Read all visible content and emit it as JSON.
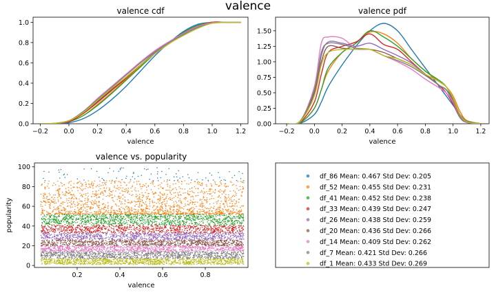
{
  "figure": {
    "suptitle": "valence"
  },
  "chart_data": [
    {
      "id": "cdf",
      "type": "line",
      "title": "valence cdf",
      "xlabel": "valence",
      "ylabel": "",
      "xlim": [
        -0.25,
        1.25
      ],
      "ylim": [
        0,
        1.05
      ],
      "xticks": [
        -0.2,
        0.0,
        0.2,
        0.4,
        0.6,
        0.8,
        1.0,
        1.2
      ],
      "xtick_labels": [
        "−0.2",
        "0.0",
        "0.2",
        "0.4",
        "0.6",
        "0.8",
        "1.0",
        "1.2"
      ],
      "yticks": [
        0.0,
        0.2,
        0.4,
        0.6,
        0.8,
        1.0
      ],
      "ytick_labels": [
        "0.0",
        "0.2",
        "0.4",
        "0.6",
        "0.8",
        "1.0"
      ],
      "x": [
        -0.2,
        -0.1,
        0.0,
        0.1,
        0.2,
        0.3,
        0.4,
        0.5,
        0.6,
        0.7,
        0.8,
        0.9,
        1.0,
        1.1,
        1.2
      ],
      "series": [
        {
          "color": "#1f77b4",
          "values": [
            0,
            0.002,
            0.01,
            0.05,
            0.13,
            0.24,
            0.37,
            0.52,
            0.67,
            0.8,
            0.91,
            0.98,
            1.0,
            1.0,
            1.0
          ]
        },
        {
          "color": "#ff7f0e",
          "values": [
            0,
            0.003,
            0.02,
            0.08,
            0.19,
            0.31,
            0.44,
            0.57,
            0.7,
            0.8,
            0.89,
            0.96,
            1.0,
            1.0,
            1.0
          ]
        },
        {
          "color": "#2ca02c",
          "values": [
            0,
            0.003,
            0.02,
            0.08,
            0.18,
            0.3,
            0.43,
            0.56,
            0.69,
            0.8,
            0.9,
            0.97,
            1.0,
            1.0,
            1.0
          ]
        },
        {
          "color": "#d62728",
          "values": [
            0,
            0.004,
            0.02,
            0.1,
            0.21,
            0.33,
            0.45,
            0.58,
            0.7,
            0.8,
            0.89,
            0.96,
            1.0,
            1.0,
            1.0
          ]
        },
        {
          "color": "#9467bd",
          "values": [
            0,
            0.004,
            0.03,
            0.11,
            0.22,
            0.34,
            0.46,
            0.58,
            0.7,
            0.8,
            0.89,
            0.96,
            0.995,
            1.0,
            1.0
          ]
        },
        {
          "color": "#8c564b",
          "values": [
            0,
            0.004,
            0.03,
            0.11,
            0.22,
            0.34,
            0.46,
            0.58,
            0.69,
            0.79,
            0.88,
            0.95,
            0.995,
            1.0,
            1.0
          ]
        },
        {
          "color": "#e377c2",
          "values": [
            0,
            0.004,
            0.03,
            0.12,
            0.25,
            0.37,
            0.49,
            0.61,
            0.72,
            0.81,
            0.89,
            0.96,
            0.995,
            1.0,
            1.0
          ]
        },
        {
          "color": "#7f7f7f",
          "values": [
            0,
            0.004,
            0.03,
            0.12,
            0.24,
            0.36,
            0.48,
            0.6,
            0.71,
            0.8,
            0.88,
            0.95,
            0.99,
            1.0,
            1.0
          ]
        },
        {
          "color": "#bcbd22",
          "values": [
            0,
            0.004,
            0.03,
            0.11,
            0.23,
            0.35,
            0.46,
            0.58,
            0.69,
            0.79,
            0.87,
            0.94,
            0.99,
            1.0,
            1.0
          ]
        }
      ]
    },
    {
      "id": "pdf",
      "type": "line",
      "title": "valence pdf",
      "xlabel": "valence",
      "ylabel": "",
      "xlim": [
        -0.28,
        1.26
      ],
      "ylim": [
        0,
        1.72
      ],
      "xticks": [
        -0.2,
        0.0,
        0.2,
        0.4,
        0.6,
        0.8,
        1.0,
        1.2
      ],
      "xtick_labels": [
        "−0.2",
        "0.0",
        "0.2",
        "0.4",
        "0.6",
        "0.8",
        "1.0",
        "1.2"
      ],
      "yticks": [
        0.0,
        0.25,
        0.5,
        0.75,
        1.0,
        1.25,
        1.5
      ],
      "ytick_labels": [
        "0.00",
        "0.25",
        "0.50",
        "0.75",
        "1.00",
        "1.25",
        "1.50"
      ],
      "x": [
        -0.2,
        -0.1,
        0.0,
        0.05,
        0.1,
        0.2,
        0.3,
        0.4,
        0.5,
        0.6,
        0.7,
        0.8,
        0.9,
        0.95,
        1.0,
        1.05,
        1.1,
        1.2
      ],
      "series": [
        {
          "color": "#1f77b4",
          "values": [
            0,
            0.01,
            0.15,
            0.35,
            0.6,
            0.95,
            1.25,
            1.5,
            1.62,
            1.5,
            1.2,
            0.9,
            0.6,
            0.45,
            0.3,
            0.15,
            0.05,
            0
          ]
        },
        {
          "color": "#ff7f0e",
          "values": [
            0,
            0.02,
            0.25,
            0.55,
            0.85,
            1.15,
            1.3,
            1.48,
            1.45,
            1.3,
            1.05,
            0.85,
            0.68,
            0.6,
            0.45,
            0.2,
            0.05,
            0
          ]
        },
        {
          "color": "#2ca02c",
          "values": [
            0,
            0.02,
            0.25,
            0.55,
            0.9,
            1.15,
            1.3,
            1.5,
            1.4,
            1.25,
            1.05,
            0.85,
            0.7,
            0.6,
            0.4,
            0.15,
            0.04,
            0
          ]
        },
        {
          "color": "#d62728",
          "values": [
            0,
            0.03,
            0.35,
            0.8,
            1.15,
            1.25,
            1.32,
            1.45,
            1.28,
            1.2,
            1.0,
            0.8,
            0.62,
            0.5,
            0.32,
            0.1,
            0.03,
            0
          ]
        },
        {
          "color": "#9467bd",
          "values": [
            0,
            0.04,
            0.5,
            1.1,
            1.32,
            1.3,
            1.25,
            1.3,
            1.2,
            1.1,
            0.98,
            0.8,
            0.62,
            0.55,
            0.35,
            0.1,
            0.02,
            0
          ]
        },
        {
          "color": "#8c564b",
          "values": [
            0,
            0.04,
            0.5,
            1.0,
            1.25,
            1.22,
            1.2,
            1.2,
            1.15,
            1.05,
            0.95,
            0.8,
            0.62,
            0.55,
            0.4,
            0.15,
            0.03,
            0
          ]
        },
        {
          "color": "#e377c2",
          "values": [
            0,
            0.05,
            0.6,
            1.3,
            1.4,
            1.38,
            1.22,
            1.2,
            1.1,
            1.0,
            0.88,
            0.72,
            0.58,
            0.5,
            0.35,
            0.12,
            0.03,
            0
          ]
        },
        {
          "color": "#7f7f7f",
          "values": [
            0,
            0.05,
            0.55,
            1.15,
            1.3,
            1.28,
            1.22,
            1.2,
            1.1,
            1.02,
            0.92,
            0.78,
            0.62,
            0.55,
            0.38,
            0.12,
            0.03,
            0
          ]
        },
        {
          "color": "#bcbd22",
          "values": [
            0,
            0.04,
            0.45,
            0.95,
            1.15,
            1.2,
            1.2,
            1.2,
            1.1,
            1.05,
            0.95,
            0.8,
            0.68,
            0.6,
            0.42,
            0.15,
            0.03,
            0
          ]
        }
      ]
    },
    {
      "id": "scatter",
      "type": "scatter",
      "title": "valence vs. popularity",
      "xlabel": "valence",
      "ylabel": "popularity",
      "xlim": [
        0.0,
        1.0
      ],
      "ylim": [
        -2,
        104
      ],
      "xticks": [
        0.2,
        0.4,
        0.6,
        0.8
      ],
      "xtick_labels": [
        "0.2",
        "0.4",
        "0.6",
        "0.8"
      ],
      "yticks": [
        0,
        20,
        40,
        60,
        80,
        100
      ],
      "ytick_labels": [
        "0",
        "20",
        "40",
        "60",
        "80",
        "100"
      ],
      "x_range": [
        0.03,
        0.98
      ],
      "series": [
        {
          "color": "#1f77b4",
          "y_range": [
            86,
            100
          ],
          "n": 90
        },
        {
          "color": "#ff7f0e",
          "y_range": [
            52,
            86
          ],
          "n": 1600
        },
        {
          "color": "#2ca02c",
          "y_range": [
            41,
            52
          ],
          "n": 1100
        },
        {
          "color": "#d62728",
          "y_range": [
            33,
            41
          ],
          "n": 900
        },
        {
          "color": "#9467bd",
          "y_range": [
            26,
            33
          ],
          "n": 900
        },
        {
          "color": "#8c564b",
          "y_range": [
            20,
            26
          ],
          "n": 900
        },
        {
          "color": "#e377c2",
          "y_range": [
            14,
            20
          ],
          "n": 900
        },
        {
          "color": "#7f7f7f",
          "y_range": [
            7,
            14
          ],
          "n": 1000
        },
        {
          "color": "#bcbd22",
          "y_range": [
            1,
            7
          ],
          "n": 1100
        }
      ]
    }
  ],
  "legend": {
    "entries": [
      {
        "color": "#1f77b4",
        "label": "df_86  Mean: 0.467  Std Dev: 0.205"
      },
      {
        "color": "#ff7f0e",
        "label": "df_52  Mean: 0.455  Std Dev: 0.231"
      },
      {
        "color": "#2ca02c",
        "label": "df_41  Mean: 0.452  Std Dev: 0.238"
      },
      {
        "color": "#d62728",
        "label": "df_33  Mean: 0.439  Std Dev: 0.247"
      },
      {
        "color": "#9467bd",
        "label": "df_26  Mean: 0.438  Std Dev: 0.259"
      },
      {
        "color": "#8c564b",
        "label": "df_20  Mean: 0.436  Std Dev: 0.266"
      },
      {
        "color": "#e377c2",
        "label": "df_14  Mean: 0.409  Std Dev: 0.262"
      },
      {
        "color": "#7f7f7f",
        "label": "df_7  Mean: 0.421  Std Dev: 0.266"
      },
      {
        "color": "#bcbd22",
        "label": "df_1  Mean: 0.433  Std Dev: 0.269"
      }
    ]
  }
}
